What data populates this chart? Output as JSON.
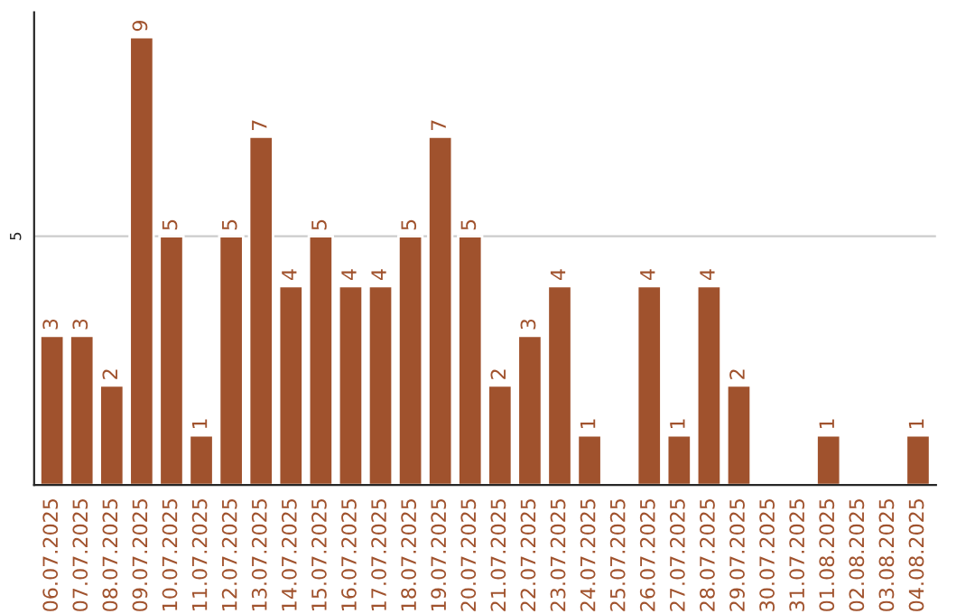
{
  "chart_data": {
    "type": "bar",
    "categories": [
      "06.07.2025",
      "07.07.2025",
      "08.07.2025",
      "09.07.2025",
      "10.07.2025",
      "11.07.2025",
      "12.07.2025",
      "13.07.2025",
      "14.07.2025",
      "15.07.2025",
      "16.07.2025",
      "17.07.2025",
      "18.07.2025",
      "19.07.2025",
      "20.07.2025",
      "21.07.2025",
      "22.07.2025",
      "23.07.2025",
      "24.07.2025",
      "25.07.2025",
      "26.07.2025",
      "27.07.2025",
      "28.07.2025",
      "29.07.2025",
      "30.07.2025",
      "31.07.2025",
      "01.08.2025",
      "02.08.2025",
      "03.08.2025",
      "04.08.2025"
    ],
    "values": [
      3,
      3,
      2,
      9,
      5,
      1,
      5,
      7,
      4,
      5,
      4,
      4,
      5,
      7,
      5,
      2,
      3,
      4,
      1,
      null,
      4,
      1,
      4,
      2,
      null,
      null,
      1,
      null,
      null,
      1
    ],
    "value_labels": [
      "3",
      "3",
      "2",
      "9",
      "5",
      "1",
      "5",
      "7",
      "4",
      "5",
      "4",
      "4",
      "5",
      "7",
      "5",
      "2",
      "3",
      "4",
      "1",
      null,
      "4",
      "1",
      "4",
      "2",
      null,
      null,
      "1",
      null,
      null,
      "1"
    ],
    "color": "#a0522d",
    "ylim": [
      0,
      9.5
    ],
    "yticks": [
      5
    ],
    "grid": "y"
  }
}
